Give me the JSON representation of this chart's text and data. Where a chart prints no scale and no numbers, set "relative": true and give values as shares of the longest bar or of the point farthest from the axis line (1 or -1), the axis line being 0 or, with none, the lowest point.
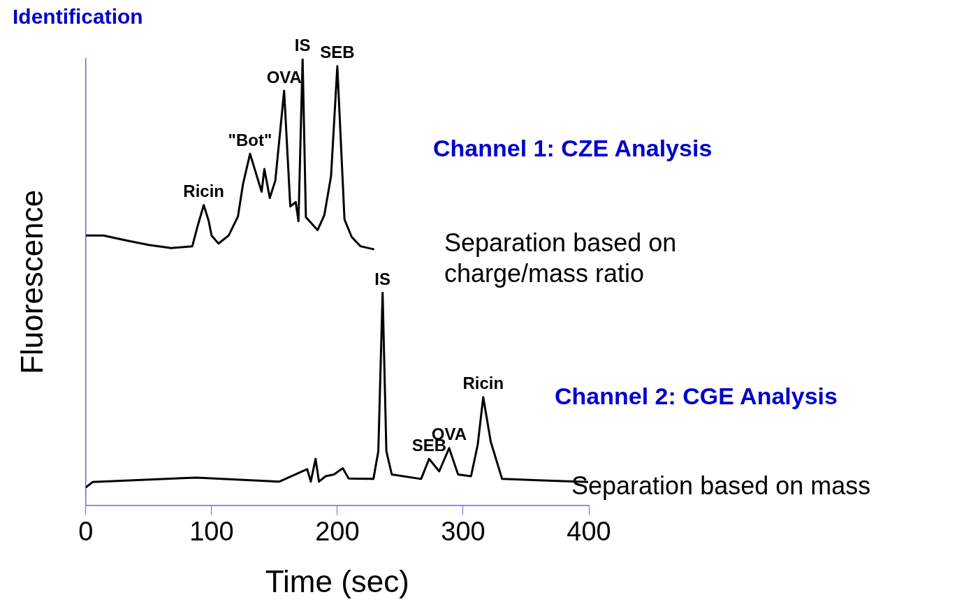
{
  "chart_data": {
    "type": "line",
    "title": "Identification",
    "xlabel": "Time (sec)",
    "ylabel": "Fluorescence",
    "relative": true,
    "xlim": [
      0,
      400
    ],
    "xticks": [
      0,
      100,
      200,
      300,
      400
    ],
    "grid": false,
    "legend": false,
    "marker": "none",
    "line_style": "solid",
    "series": [
      {
        "color": "#000000",
        "x": [
          0.2,
          14,
          32,
          50,
          68,
          84.7,
          89,
          93.8,
          97.7,
          100,
          105.5,
          113.6,
          121,
          125,
          130.6,
          139.8,
          142,
          146.3,
          150.7,
          157.7,
          162.6,
          166.9,
          169.1,
          172.4,
          175,
          184.3,
          189.7,
          195,
          200,
          205.7,
          211.4,
          218.4,
          229.3
        ],
        "values": [
          0.604,
          0.604,
          0.593,
          0.583,
          0.576,
          0.58,
          0.626,
          0.672,
          0.637,
          0.604,
          0.586,
          0.604,
          0.647,
          0.719,
          0.787,
          0.702,
          0.753,
          0.688,
          0.727,
          0.928,
          0.669,
          0.679,
          0.636,
          1.0,
          0.645,
          0.616,
          0.65,
          0.737,
          0.983,
          0.64,
          0.601,
          0.58,
          0.573
        ]
      },
      {
        "color": "#000000",
        "x": [
          0,
          5.4,
          88,
          154,
          176,
          178.9,
          182.7,
          185.4,
          190.7,
          197.3,
          204.3,
          209,
          228.7,
          232.6,
          236,
          239,
          243.3,
          266.6,
          273,
          281,
          288.9,
          296,
          306.3,
          311.6,
          316,
          322,
          331,
          399.4
        ],
        "values": [
          0.04,
          0.052,
          0.062,
          0.053,
          0.081,
          0.053,
          0.104,
          0.053,
          0.065,
          0.069,
          0.083,
          0.06,
          0.059,
          0.121,
          0.476,
          0.121,
          0.069,
          0.059,
          0.104,
          0.076,
          0.128,
          0.069,
          0.065,
          0.135,
          0.242,
          0.142,
          0.059,
          0.052
        ]
      }
    ],
    "annotations": [
      "Channel 1: CZE Analysis",
      "Separation based on\ncharge/mass ratio",
      "Channel 2: CGE Analysis",
      "Separation based on mass",
      {
        "text": "Ricin",
        "x": 93.8,
        "y": 0.672
      },
      {
        "text": "\"Bot\"",
        "x": 130.6,
        "y": 0.787
      },
      {
        "text": "OVA",
        "x": 157.7,
        "y": 0.928
      },
      {
        "text": "IS",
        "x": 172.4,
        "y": 1.0
      },
      {
        "text": "SEB",
        "x": 200,
        "y": 0.983
      },
      {
        "text": "IS",
        "x": 236,
        "y": 0.476
      },
      {
        "text": "SEB",
        "x": 273,
        "y": 0.104
      },
      {
        "text": "OVA",
        "x": 288.9,
        "y": 0.128
      },
      {
        "text": "Ricin",
        "x": 316,
        "y": 0.242
      }
    ]
  }
}
